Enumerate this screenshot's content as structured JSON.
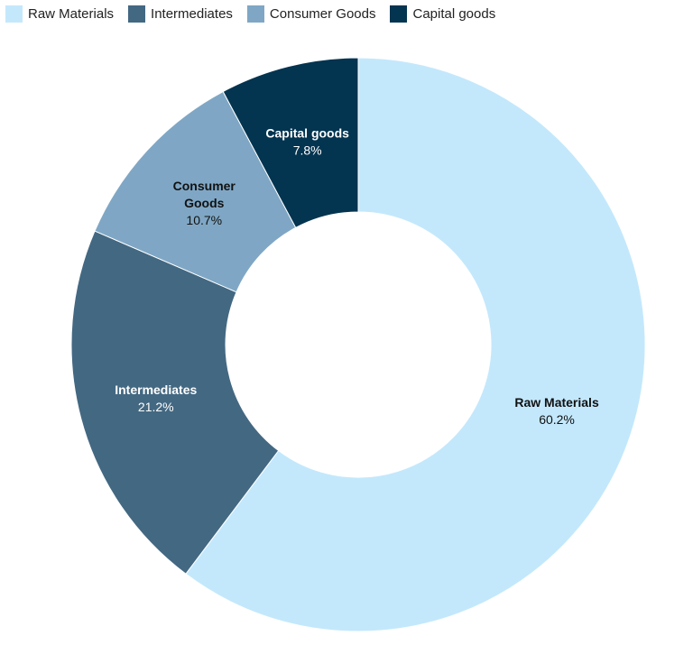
{
  "chart_data": {
    "type": "pie",
    "donut": true,
    "legend_position": "top-left",
    "categories": [
      "Raw Materials",
      "Intermediates",
      "Consumer Goods",
      "Capital goods"
    ],
    "values": [
      60.2,
      21.2,
      10.7,
      7.8
    ],
    "value_labels": [
      "60.2%",
      "21.2%",
      "10.7%",
      "7.8%"
    ],
    "label_lines": [
      [
        "Raw Materials"
      ],
      [
        "Intermediates"
      ],
      [
        "Consumer",
        "Goods"
      ],
      [
        "Capital goods"
      ]
    ],
    "colors": [
      "#c3e8fc",
      "#436882",
      "#7fa7c5",
      "#033450"
    ],
    "label_colors": [
      "#111111",
      "#ffffff",
      "#111111",
      "#ffffff"
    ]
  },
  "legend": {
    "items": [
      {
        "label": "Raw Materials",
        "color": "#c3e8fc"
      },
      {
        "label": "Intermediates",
        "color": "#436882"
      },
      {
        "label": "Consumer Goods",
        "color": "#7fa7c5"
      },
      {
        "label": "Capital goods",
        "color": "#033450"
      }
    ]
  }
}
